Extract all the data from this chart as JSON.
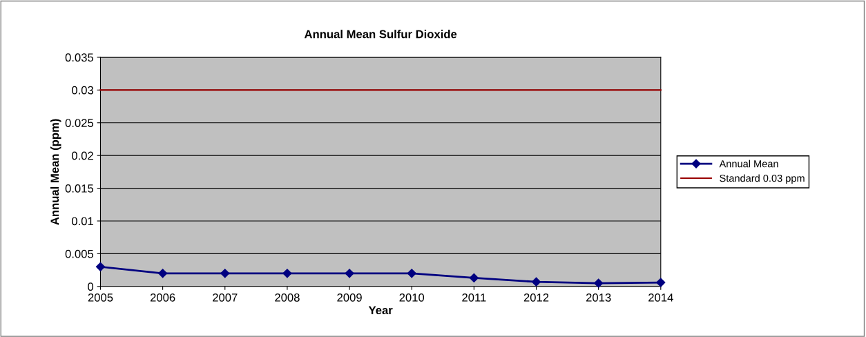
{
  "chart_data": {
    "type": "line",
    "title": "Annual Mean Sulfur Dioxide",
    "xlabel": "Year",
    "ylabel": "Annual Mean (ppm)",
    "categories": [
      "2005",
      "2006",
      "2007",
      "2008",
      "2009",
      "2010",
      "2011",
      "2012",
      "2013",
      "2014"
    ],
    "series": [
      {
        "name": "Annual Mean",
        "color": "#000080",
        "marker": "diamond",
        "values": [
          0.003,
          0.002,
          0.002,
          0.002,
          0.002,
          0.002,
          0.0013,
          0.0007,
          0.0005,
          0.0006
        ]
      },
      {
        "name": "Standard 0.03 ppm",
        "color": "#990000",
        "marker": "none",
        "values": [
          0.03,
          0.03,
          0.03,
          0.03,
          0.03,
          0.03,
          0.03,
          0.03,
          0.03,
          0.03
        ]
      }
    ],
    "ylim": [
      0,
      0.035
    ],
    "yticks": [
      0,
      0.005,
      0.01,
      0.015,
      0.02,
      0.025,
      0.03,
      0.035
    ],
    "grid": "y",
    "legend": "right"
  }
}
